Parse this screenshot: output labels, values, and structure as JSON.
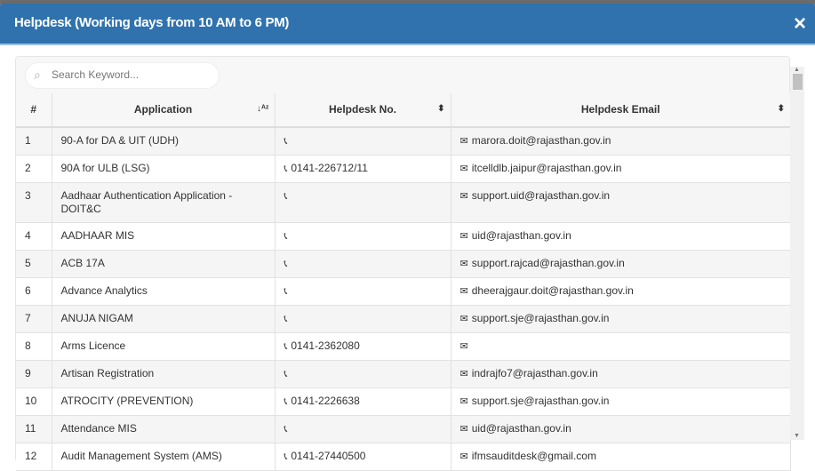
{
  "modal": {
    "title": "Helpdesk (Working days from 10 AM to 6 PM)",
    "close_label": "×"
  },
  "search": {
    "placeholder": "Search Keyword..."
  },
  "columns": [
    "#",
    "Application",
    "Helpdesk No.",
    "Helpdesk Email"
  ],
  "rows": [
    {
      "n": "1",
      "app": "90-A for DA & UIT (UDH)",
      "phone": "",
      "email": "marora.doit@rajasthan.gov.in"
    },
    {
      "n": "2",
      "app": "90A for ULB (LSG)",
      "phone": "0141-226712/11",
      "email": "itcelldlb.jaipur@rajasthan.gov.in"
    },
    {
      "n": "3",
      "app": "Aadhaar Authentication Application - DOIT&C",
      "phone": "",
      "email": "support.uid@rajasthan.gov.in"
    },
    {
      "n": "4",
      "app": "AADHAAR MIS",
      "phone": "",
      "email": "uid@rajasthan.gov.in"
    },
    {
      "n": "5",
      "app": "ACB 17A",
      "phone": "",
      "email": "support.rajcad@rajasthan.gov.in"
    },
    {
      "n": "6",
      "app": "Advance Analytics",
      "phone": "",
      "email": "dheerajgaur.doit@rajasthan.gov.in"
    },
    {
      "n": "7",
      "app": "ANUJA NIGAM",
      "phone": "",
      "email": "support.sje@rajasthan.gov.in"
    },
    {
      "n": "8",
      "app": "Arms Licence",
      "phone": "0141-2362080",
      "email": ""
    },
    {
      "n": "9",
      "app": "Artisan Registration",
      "phone": "",
      "email": "indrajfo7@rajasthan.gov.in"
    },
    {
      "n": "10",
      "app": "ATROCITY (PREVENTION)",
      "phone": "0141-2226638",
      "email": "support.sje@rajasthan.gov.in"
    },
    {
      "n": "11",
      "app": "Attendance MIS",
      "phone": "",
      "email": "uid@rajasthan.gov.in"
    },
    {
      "n": "12",
      "app": "Audit Management System (AMS)",
      "phone": "0141-27440500",
      "email": "ifmsauditdesk@gmail.com"
    }
  ]
}
